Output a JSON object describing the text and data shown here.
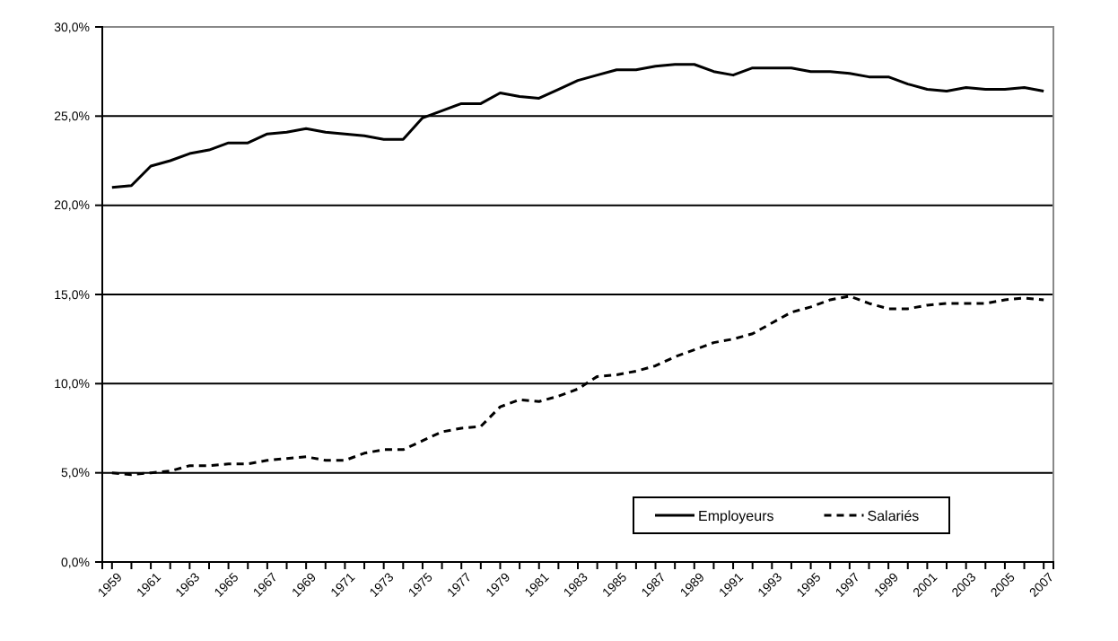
{
  "chart_data": {
    "type": "line",
    "categories": [
      "1959",
      null,
      "1961",
      null,
      "1963",
      null,
      "1965",
      null,
      "1967",
      null,
      "1969",
      null,
      "1971",
      null,
      "1973",
      null,
      "1975",
      null,
      "1977",
      null,
      "1979",
      null,
      "1981",
      null,
      "1983",
      null,
      "1985",
      null,
      "1987",
      null,
      "1989",
      null,
      "1991",
      null,
      "1993",
      null,
      "1995",
      null,
      "1997",
      null,
      "1999",
      null,
      "2001",
      null,
      "2003",
      null,
      "2005",
      null,
      "2007"
    ],
    "series": [
      {
        "name": "Employeurs",
        "color": "#000000",
        "line_style": "solid",
        "values": [
          21.0,
          21.1,
          22.2,
          22.5,
          22.9,
          23.1,
          23.5,
          23.5,
          24.0,
          24.1,
          24.3,
          24.1,
          24.0,
          23.9,
          23.7,
          23.7,
          24.9,
          25.3,
          25.7,
          25.7,
          26.3,
          26.1,
          26.0,
          26.5,
          27.0,
          27.3,
          27.6,
          27.6,
          27.8,
          27.9,
          27.9,
          27.5,
          27.3,
          27.7,
          27.7,
          27.7,
          27.5,
          27.5,
          27.4,
          27.2,
          27.2,
          26.8,
          26.5,
          26.4,
          26.6,
          26.5,
          26.5,
          26.6,
          26.4
        ]
      },
      {
        "name": "Salariés",
        "color": "#000000",
        "line_style": "dashed",
        "values": [
          5.0,
          4.9,
          5.0,
          5.1,
          5.4,
          5.4,
          5.5,
          5.5,
          5.7,
          5.8,
          5.9,
          5.7,
          5.7,
          6.1,
          6.3,
          6.3,
          6.8,
          7.3,
          7.5,
          7.6,
          8.7,
          9.1,
          9.0,
          9.3,
          9.7,
          10.4,
          10.5,
          10.7,
          11.0,
          11.5,
          11.9,
          12.3,
          12.5,
          12.8,
          13.4,
          14.0,
          14.3,
          14.7,
          14.9,
          14.5,
          14.2,
          14.2,
          14.4,
          14.5,
          14.5,
          14.5,
          14.7,
          14.8,
          14.7
        ]
      }
    ],
    "ylim": [
      0,
      30
    ],
    "yticks": [
      {
        "value": 0,
        "label": "0,0%"
      },
      {
        "value": 5,
        "label": "5,0%"
      },
      {
        "value": 10,
        "label": "10,0%"
      },
      {
        "value": 15,
        "label": "15,0%"
      },
      {
        "value": 20,
        "label": "20,0%"
      },
      {
        "value": 25,
        "label": "25,0%"
      },
      {
        "value": 30,
        "label": "30,0%"
      }
    ],
    "grid": "y",
    "legend": "bottom right"
  }
}
